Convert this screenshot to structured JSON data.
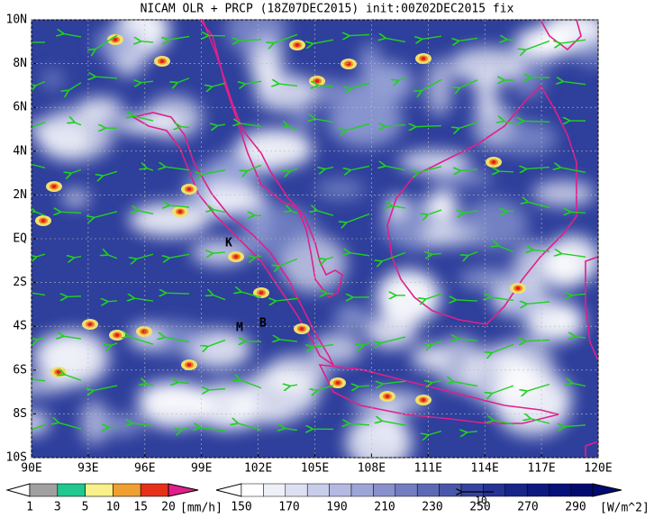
{
  "title": "NICAM OLR + PRCP (18Z07DEC2015) init:00Z02DEC2015 fix",
  "lat_labels": [
    "10N",
    "8N",
    "6N",
    "4N",
    "2N",
    "EQ",
    "2S",
    "4S",
    "6S",
    "8S",
    "10S"
  ],
  "lon_labels": [
    "90E",
    "93E",
    "96E",
    "99E",
    "102E",
    "105E",
    "108E",
    "111E",
    "114E",
    "117E",
    "120E"
  ],
  "stations": [
    "K",
    "M",
    "B"
  ],
  "precip_colorbar": {
    "labels": [
      "1",
      "3",
      "5",
      "10",
      "15",
      "20"
    ],
    "unit": "[mm/h]"
  },
  "olr_colorbar": {
    "labels": [
      "150",
      "170",
      "190",
      "210",
      "230",
      "250",
      "270",
      "290"
    ],
    "unit": "[W/m^2]"
  },
  "vector_legend": "10"
}
